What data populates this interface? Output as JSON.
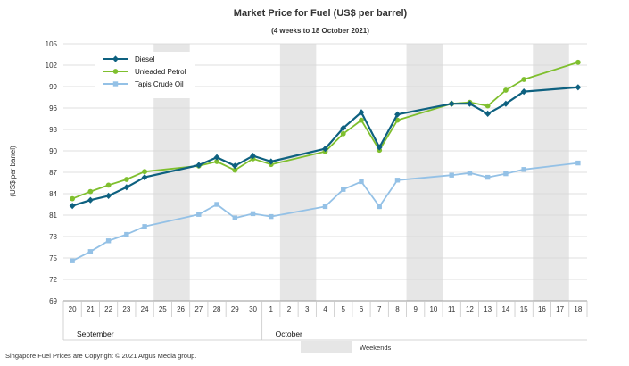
{
  "chart_data": {
    "type": "line",
    "title": "Market Price for Fuel (US$ per barrel)",
    "subtitle": "(4 weeks to 18 October 2021)",
    "ylabel": "(US$ per barrel)",
    "xlabel": "",
    "ylim": [
      69,
      105
    ],
    "yticks": [
      69,
      72,
      75,
      78,
      81,
      84,
      87,
      90,
      93,
      96,
      99,
      102,
      105
    ],
    "grid": true,
    "legend_position": "top-left",
    "categories": [
      "20",
      "21",
      "22",
      "23",
      "24",
      "25",
      "26",
      "27",
      "28",
      "29",
      "30",
      "1",
      "2",
      "3",
      "4",
      "5",
      "6",
      "7",
      "8",
      "9",
      "10",
      "11",
      "12",
      "13",
      "14",
      "15",
      "16",
      "17",
      "18"
    ],
    "months": [
      {
        "label": "September",
        "start_index": 0
      },
      {
        "label": "October",
        "start_index": 11
      }
    ],
    "weekends": [
      {
        "from": "25",
        "to": "26"
      },
      {
        "from": "2",
        "to": "3"
      },
      {
        "from": "9",
        "to": "10"
      },
      {
        "from": "16",
        "to": "17"
      }
    ],
    "series": [
      {
        "name": "Diesel",
        "color": "#0e6180",
        "marker": "diamond",
        "values": [
          82.3,
          83.1,
          83.7,
          84.9,
          86.3,
          null,
          null,
          88.0,
          89.1,
          87.9,
          89.3,
          88.5,
          null,
          null,
          90.3,
          93.2,
          95.4,
          90.5,
          95.1,
          null,
          null,
          96.6,
          96.6,
          95.2,
          96.6,
          98.3,
          null,
          null,
          98.9
        ]
      },
      {
        "name": "Unleaded Petrol",
        "color": "#7fbf2e",
        "marker": "circle",
        "values": [
          83.3,
          84.3,
          85.2,
          86.0,
          87.1,
          null,
          null,
          87.9,
          88.5,
          87.3,
          88.9,
          88.1,
          null,
          null,
          89.9,
          92.4,
          94.3,
          90.1,
          94.3,
          null,
          null,
          96.6,
          96.8,
          96.3,
          98.5,
          100.0,
          null,
          null,
          102.4
        ]
      },
      {
        "name": "Tapis Crude Oil",
        "color": "#94c1e6",
        "marker": "square",
        "values": [
          74.6,
          75.9,
          77.4,
          78.3,
          79.4,
          null,
          null,
          81.1,
          82.5,
          80.6,
          81.2,
          80.8,
          null,
          null,
          82.2,
          84.6,
          85.7,
          82.2,
          85.9,
          null,
          null,
          86.6,
          86.9,
          86.3,
          86.8,
          87.4,
          null,
          null,
          88.3
        ]
      }
    ],
    "footnote": "Singapore Fuel Prices are Copyright © 2021 Argus Media group.",
    "weekend_legend_label": "Weekends"
  }
}
